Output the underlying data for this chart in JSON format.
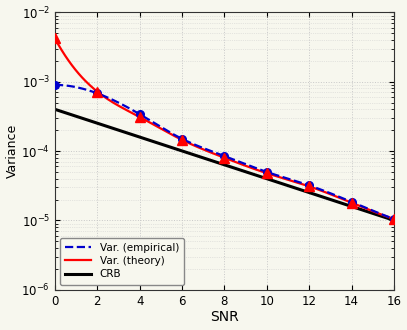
{
  "xlabel": "SNR",
  "ylabel": "Variance",
  "xlim": [
    0,
    16
  ],
  "color_empirical": "#0000cc",
  "color_theory": "#ff0000",
  "color_crb": "#000000",
  "legend_empirical": "Var. (empirical)",
  "legend_theory": "Var. (theory)",
  "legend_crb": "CRB",
  "background_color": "#f7f7ee",
  "grid_color": "#d0d0d0",
  "theory_snr": [
    0,
    2,
    4,
    6,
    8,
    10,
    12,
    14,
    16
  ],
  "theory_var": [
    0.0042,
    0.00072,
    0.00031,
    0.000145,
    8e-05,
    4.8e-05,
    3.1e-05,
    1.8e-05,
    1.05e-05
  ],
  "emp_snr": [
    0,
    2,
    4,
    6,
    8,
    10,
    12,
    14,
    16
  ],
  "emp_var": [
    0.0009,
    0.00068,
    0.00034,
    0.00015,
    8.5e-05,
    5e-05,
    3.2e-05,
    1.85e-05,
    1.05e-05
  ],
  "crb_snr0_val": 0.0004,
  "crb_snr16_val": 1e-05
}
